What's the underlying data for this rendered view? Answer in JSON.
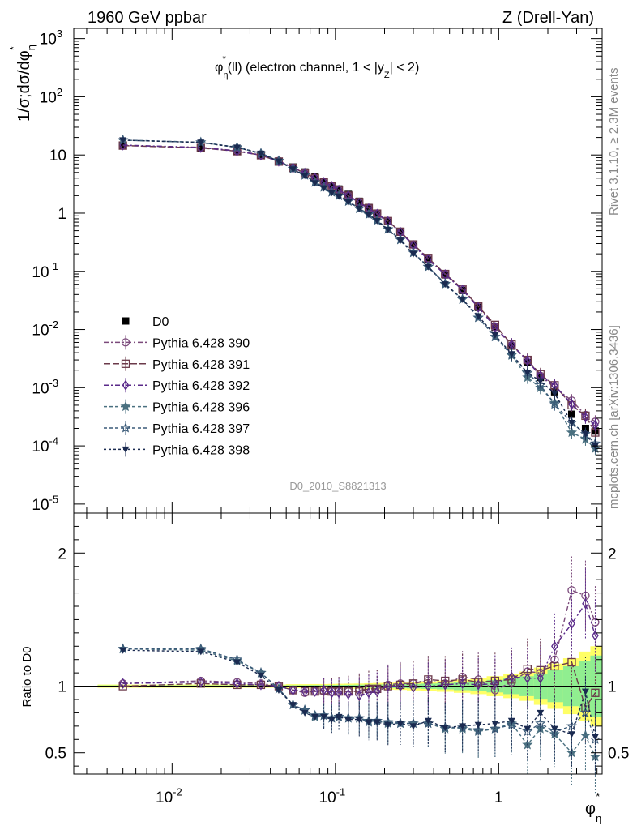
{
  "header": {
    "left": "1960 GeV ppbar",
    "right": "Z (Drell-Yan)"
  },
  "side": {
    "rivet": "Rivet 3.1.10, ≥ 2.3M events",
    "mcplots": "mcplots.cern.ch [arXiv:1306.3436]"
  },
  "chart_data": [
    {
      "type": "line",
      "title": "φ*η(ll) (electron channel, 1 < |yZ| < 2)",
      "watermark": "D0_2010_S8821313",
      "ylabel": "1/σ;dσ/dφ*η",
      "xlabel": "φ*η",
      "xscale": "log",
      "yscale": "log",
      "xlim": [
        0.0025,
        4.3
      ],
      "ylim": [
        7e-06,
        1500
      ],
      "xticks": [
        "10^-2",
        "10^-1",
        "1"
      ],
      "yticks": [
        "10^3",
        "10^2",
        "10",
        "1",
        "10^-1",
        "10^-2",
        "10^-3",
        "10^-4",
        "10^-5"
      ],
      "legend_position": "middle-left",
      "x": [
        0.005,
        0.015,
        0.025,
        0.035,
        0.045,
        0.055,
        0.065,
        0.075,
        0.085,
        0.095,
        0.105,
        0.12,
        0.14,
        0.16,
        0.18,
        0.21,
        0.25,
        0.3,
        0.37,
        0.47,
        0.6,
        0.75,
        0.95,
        1.2,
        1.5,
        1.8,
        2.2,
        2.8,
        3.4,
        3.9
      ],
      "series": [
        {
          "name": "D0",
          "color": "#000000",
          "marker": "filled-square",
          "values": [
            14.5,
            13.0,
            11.5,
            9.8,
            7.7,
            6.2,
            5.1,
            4.2,
            3.5,
            3.0,
            2.6,
            2.1,
            1.6,
            1.25,
            1.0,
            0.72,
            0.47,
            0.29,
            0.16,
            0.087,
            0.047,
            0.024,
            0.011,
            0.0052,
            0.0027,
            0.0015,
            0.00085,
            0.00035,
            0.0002,
            0.00018
          ]
        },
        {
          "name": "Pythia 6.428 390",
          "color": "#7b4a7b",
          "marker": "open-circle",
          "dash": "6,3,2,3",
          "values": [
            14.7,
            13.5,
            11.8,
            10.0,
            7.9,
            6.1,
            4.9,
            4.0,
            3.4,
            2.9,
            2.5,
            2.0,
            1.55,
            1.22,
            0.98,
            0.73,
            0.48,
            0.29,
            0.165,
            0.09,
            0.05,
            0.025,
            0.011,
            0.0053,
            0.003,
            0.0016,
            0.001,
            0.0006,
            0.00034,
            0.00026
          ]
        },
        {
          "name": "Pythia 6.428 391",
          "color": "#6b3a4a",
          "marker": "open-square",
          "dash": "8,3",
          "values": [
            14.5,
            13.2,
            11.6,
            9.9,
            7.7,
            6.0,
            4.9,
            4.0,
            3.4,
            2.9,
            2.5,
            2.0,
            1.55,
            1.22,
            0.98,
            0.73,
            0.48,
            0.29,
            0.17,
            0.09,
            0.05,
            0.025,
            0.012,
            0.0055,
            0.003,
            0.0017,
            0.0011,
            0.0005,
            0.00033,
            0.00017
          ]
        },
        {
          "name": "Pythia 6.428 392",
          "color": "#5a2a8a",
          "marker": "open-diamond",
          "dash": "6,3,2,3",
          "values": [
            14.8,
            13.4,
            11.7,
            9.9,
            7.8,
            6.0,
            4.9,
            4.0,
            3.4,
            2.9,
            2.5,
            2.0,
            1.5,
            1.2,
            0.96,
            0.72,
            0.47,
            0.28,
            0.16,
            0.088,
            0.048,
            0.024,
            0.011,
            0.0055,
            0.0029,
            0.0016,
            0.0011,
            0.00052,
            0.00031,
            0.00023
          ]
        },
        {
          "name": "Pythia 6.428 396",
          "color": "#4a7080",
          "marker": "filled-star",
          "dash": "4,3",
          "values": [
            18.0,
            16.5,
            13.5,
            10.6,
            7.9,
            5.8,
            4.5,
            3.4,
            2.8,
            2.3,
            2.0,
            1.6,
            1.2,
            0.96,
            0.75,
            0.53,
            0.35,
            0.21,
            0.12,
            0.06,
            0.033,
            0.016,
            0.0075,
            0.0036,
            0.0015,
            0.001,
            0.00055,
            0.00017,
            0.00013,
            9e-05
          ]
        },
        {
          "name": "Pythia 6.428 397",
          "color": "#3a5a78",
          "marker": "open-star",
          "dash": "4,3",
          "values": [
            18.0,
            16.5,
            13.6,
            10.7,
            7.9,
            5.8,
            4.5,
            3.4,
            2.8,
            2.3,
            2.0,
            1.6,
            1.2,
            0.95,
            0.75,
            0.53,
            0.35,
            0.21,
            0.12,
            0.061,
            0.033,
            0.016,
            0.0075,
            0.0037,
            0.0018,
            0.0011,
            0.00052,
            0.00025,
            0.00016,
            0.00011
          ]
        },
        {
          "name": "Pythia 6.428 398",
          "color": "#1a2a50",
          "marker": "filled-triangle-down",
          "dash": "3,3",
          "values": [
            18.0,
            16.4,
            13.5,
            10.6,
            7.8,
            5.7,
            4.4,
            3.3,
            2.7,
            2.25,
            1.95,
            1.55,
            1.2,
            0.94,
            0.74,
            0.52,
            0.34,
            0.2,
            0.12,
            0.06,
            0.033,
            0.017,
            0.008,
            0.0038,
            0.0018,
            0.0013,
            0.0008,
            0.00025,
            0.00016,
            0.0001
          ]
        }
      ]
    },
    {
      "type": "line",
      "ylabel": "Ratio to D0",
      "xscale": "log",
      "xlim": [
        0.0025,
        4.3
      ],
      "ylim": [
        0.34,
        2.3
      ],
      "yticks": [
        "2",
        "1",
        "0.5"
      ],
      "x": [
        0.005,
        0.015,
        0.025,
        0.035,
        0.045,
        0.055,
        0.065,
        0.075,
        0.085,
        0.095,
        0.105,
        0.12,
        0.14,
        0.16,
        0.18,
        0.21,
        0.25,
        0.3,
        0.37,
        0.47,
        0.6,
        0.75,
        0.95,
        1.2,
        1.5,
        1.8,
        2.2,
        2.8,
        3.4,
        3.9
      ],
      "band_stat_syst": [
        0.012,
        0.012,
        0.012,
        0.012,
        0.012,
        0.015,
        0.015,
        0.016,
        0.016,
        0.017,
        0.018,
        0.019,
        0.02,
        0.022,
        0.024,
        0.026,
        0.028,
        0.032,
        0.036,
        0.042,
        0.05,
        0.06,
        0.075,
        0.09,
        0.11,
        0.14,
        0.17,
        0.21,
        0.26,
        0.3
      ],
      "band_stat": [
        0.006,
        0.006,
        0.006,
        0.006,
        0.006,
        0.007,
        0.007,
        0.008,
        0.008,
        0.009,
        0.009,
        0.01,
        0.011,
        0.012,
        0.013,
        0.014,
        0.015,
        0.017,
        0.02,
        0.024,
        0.03,
        0.037,
        0.047,
        0.06,
        0.075,
        0.095,
        0.12,
        0.15,
        0.19,
        0.23
      ],
      "series": [
        {
          "name": "Pythia 6.428 390",
          "values": [
            1.02,
            1.04,
            1.03,
            1.02,
            1.0,
            0.97,
            0.95,
            0.96,
            0.96,
            0.96,
            0.96,
            0.96,
            0.97,
            0.98,
            0.98,
            1.01,
            1.02,
            1.02,
            1.04,
            1.02,
            1.07,
            1.05,
            0.97,
            1.03,
            1.11,
            1.1,
            1.2,
            1.72,
            1.68,
            1.48
          ]
        },
        {
          "name": "Pythia 6.428 391",
          "values": [
            1.0,
            1.02,
            1.01,
            1.01,
            1.0,
            0.97,
            0.96,
            0.96,
            0.97,
            0.96,
            0.96,
            0.96,
            0.96,
            0.98,
            0.98,
            1.0,
            1.01,
            1.02,
            1.05,
            1.04,
            1.05,
            1.03,
            1.04,
            1.05,
            1.13,
            1.12,
            1.15,
            1.18,
            0.84,
            0.95
          ]
        },
        {
          "name": "Pythia 6.428 392",
          "values": [
            1.02,
            1.03,
            1.02,
            1.01,
            1.0,
            0.97,
            0.96,
            0.96,
            0.97,
            0.95,
            0.95,
            0.94,
            0.93,
            0.95,
            0.96,
            1.0,
            1.0,
            0.99,
            1.0,
            1.01,
            1.02,
            1.01,
            1.02,
            1.07,
            1.06,
            1.06,
            1.3,
            1.47,
            1.62,
            1.38
          ]
        },
        {
          "name": "Pythia 6.428 396",
          "values": [
            1.28,
            1.27,
            1.19,
            1.1,
            0.98,
            0.86,
            0.82,
            0.77,
            0.78,
            0.76,
            0.77,
            0.76,
            0.76,
            0.74,
            0.74,
            0.72,
            0.72,
            0.72,
            0.72,
            0.68,
            0.68,
            0.66,
            0.68,
            0.72,
            0.56,
            0.68,
            0.64,
            0.5,
            0.63,
            0.47
          ]
        },
        {
          "name": "Pythia 6.428 397",
          "values": [
            1.28,
            1.28,
            1.2,
            1.1,
            0.98,
            0.86,
            0.82,
            0.78,
            0.78,
            0.76,
            0.77,
            0.76,
            0.76,
            0.73,
            0.74,
            0.73,
            0.72,
            0.72,
            0.72,
            0.69,
            0.69,
            0.67,
            0.68,
            0.71,
            0.66,
            0.72,
            0.66,
            0.7,
            0.8,
            0.6
          ]
        },
        {
          "name": "Pythia 6.428 398",
          "values": [
            1.27,
            1.26,
            1.18,
            1.08,
            0.97,
            0.86,
            0.8,
            0.77,
            0.77,
            0.75,
            0.77,
            0.75,
            0.75,
            0.73,
            0.73,
            0.71,
            0.72,
            0.7,
            0.74,
            0.69,
            0.7,
            0.71,
            0.72,
            0.74,
            0.68,
            0.8,
            0.68,
            0.64,
            0.96,
            0.62
          ]
        }
      ]
    }
  ],
  "colors": {
    "band_outer": "#ffff66",
    "band_inner": "#90ee90",
    "reference_line": "#000000"
  }
}
